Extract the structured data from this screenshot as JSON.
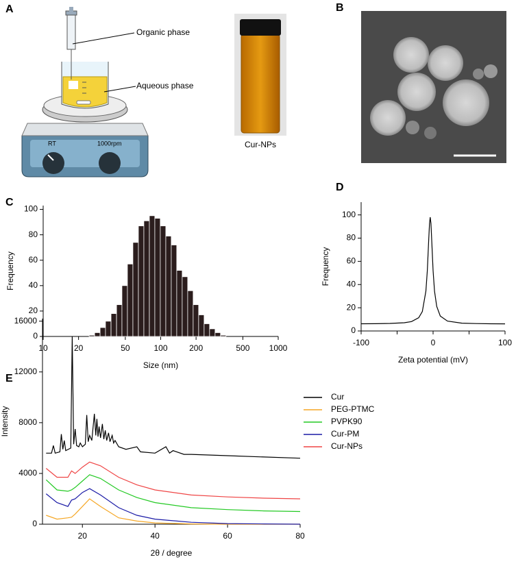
{
  "labels": {
    "panels": [
      "A",
      "B",
      "C",
      "D",
      "E"
    ],
    "organic_phase": "Organic phase",
    "aqueous_phase": "Aqueous phase",
    "knob_left": "RT",
    "knob_right": "1000rpm",
    "vial": "Cur-NPs"
  },
  "chart_data": [
    {
      "type": "histogram",
      "xscale": "log",
      "ylabel": "Frequency",
      "xlabel": "Size (nm)",
      "color": "#2b1d1d",
      "bins": [
        24.6,
        27.4,
        30.5,
        33.9,
        37.8,
        42.1,
        46.8,
        52.1,
        58.0,
        64.6,
        71.9,
        80.1,
        89.1,
        99.2,
        110.5,
        123.0,
        136.9,
        152.4,
        169.7,
        188.9,
        210.3,
        234.1,
        260.6,
        290.2,
        323.0,
        359.6
      ],
      "values": [
        1,
        3,
        7,
        12,
        18,
        25,
        40,
        57,
        74,
        87,
        91,
        95,
        93,
        87,
        79,
        72,
        52,
        47,
        36,
        25,
        17,
        10,
        6,
        3,
        1
      ],
      "xlim": [
        10,
        1000
      ],
      "xticks": [
        10,
        20,
        50,
        100,
        200,
        500,
        1000
      ],
      "ylim": [
        0,
        103
      ],
      "yticks": [
        0,
        20,
        40,
        60,
        80,
        100
      ]
    },
    {
      "type": "line",
      "ylabel": "Frequency",
      "xlabel": "Zeta potential (mV)",
      "color": "#000000",
      "x": [
        -100,
        -80,
        -60,
        -40,
        -30,
        -20,
        -15,
        -10,
        -8,
        -6,
        -5,
        -4,
        -3,
        -2,
        0,
        2,
        5,
        10,
        20,
        40,
        60,
        80,
        100
      ],
      "values": [
        6.2,
        6.25,
        6.47,
        7.1,
        8.1,
        11.4,
        16.7,
        34.3,
        52,
        79.6,
        92.6,
        98,
        92.6,
        79.6,
        52,
        34.3,
        21.2,
        12.9,
        8.5,
        6.76,
        6.36,
        6.21,
        6.14
      ],
      "xlim": [
        -100,
        100
      ],
      "xticks": [
        -100,
        0,
        100
      ],
      "xminorticks": [
        -50,
        50
      ],
      "ylim": [
        0,
        111
      ],
      "yticks": [
        0,
        20,
        40,
        60,
        80,
        100
      ]
    },
    {
      "type": "line",
      "ylabel": "Intensity",
      "xlabel": "2θ / degree",
      "legend": "right",
      "xlim": [
        9,
        80
      ],
      "xticks": [
        20,
        40,
        60,
        80
      ],
      "ylim": [
        0,
        16200
      ],
      "yticks": [
        0,
        4000,
        8000,
        12000,
        16000
      ],
      "series": [
        {
          "name": "Cur",
          "color": "#000000",
          "x": [
            10,
            11.5,
            12,
            12.5,
            13.8,
            14.2,
            14.6,
            15,
            15.4,
            16.8,
            17.2,
            17.6,
            18,
            18.4,
            19,
            19.4,
            20,
            20.8,
            21.2,
            21.6,
            22,
            22.6,
            23.3,
            23.7,
            24,
            24.3,
            24.6,
            25,
            25.5,
            25.9,
            26.3,
            26.7,
            27.2,
            27.6,
            28.2,
            28.6,
            29,
            30,
            32,
            35,
            36,
            40,
            43,
            44,
            45,
            48,
            50,
            60,
            70,
            80
          ],
          "values": [
            5600,
            5600,
            6200,
            5600,
            5700,
            7100,
            5900,
            6600,
            5800,
            6000,
            14800,
            6300,
            7500,
            6200,
            6100,
            6400,
            6100,
            6300,
            8600,
            6500,
            7000,
            6600,
            8700,
            7000,
            8300,
            6900,
            7700,
            6800,
            7900,
            6700,
            7400,
            6600,
            7200,
            6500,
            7000,
            6400,
            6600,
            6100,
            5900,
            6100,
            5700,
            5600,
            6100,
            5600,
            5800,
            5500,
            5500,
            5400,
            5300,
            5200
          ]
        },
        {
          "name": "PEG-PTMC",
          "color": "#f5a623",
          "x": [
            10,
            13,
            16,
            17,
            18,
            20,
            22,
            25,
            30,
            35,
            40,
            50,
            60,
            70,
            80
          ],
          "values": [
            700,
            400,
            500,
            550,
            800,
            1400,
            2000,
            1400,
            500,
            250,
            100,
            20,
            0,
            0,
            0
          ]
        },
        {
          "name": "PVPK90",
          "color": "#22c922",
          "x": [
            10,
            13,
            16,
            17,
            18,
            20,
            22,
            25,
            30,
            35,
            40,
            50,
            60,
            70,
            80
          ],
          "values": [
            3500,
            2700,
            2600,
            2700,
            2900,
            3400,
            3900,
            3600,
            2700,
            2100,
            1700,
            1300,
            1150,
            1050,
            1000
          ]
        },
        {
          "name": "Cur-PM",
          "color": "#1a1aa6",
          "x": [
            10,
            13,
            16,
            17,
            18,
            20,
            22,
            25,
            30,
            35,
            40,
            50,
            60,
            70,
            80
          ],
          "values": [
            2400,
            1700,
            1400,
            1900,
            2000,
            2500,
            2800,
            2300,
            1300,
            700,
            400,
            150,
            50,
            20,
            0
          ]
        },
        {
          "name": "Cur-NPs",
          "color": "#ef4444",
          "x": [
            10,
            13,
            16,
            17,
            18,
            20,
            22,
            25,
            30,
            35,
            40,
            50,
            60,
            70,
            80
          ],
          "values": [
            4400,
            3700,
            3700,
            4200,
            4000,
            4500,
            4900,
            4600,
            3700,
            3100,
            2700,
            2300,
            2150,
            2050,
            2000
          ]
        }
      ]
    }
  ]
}
